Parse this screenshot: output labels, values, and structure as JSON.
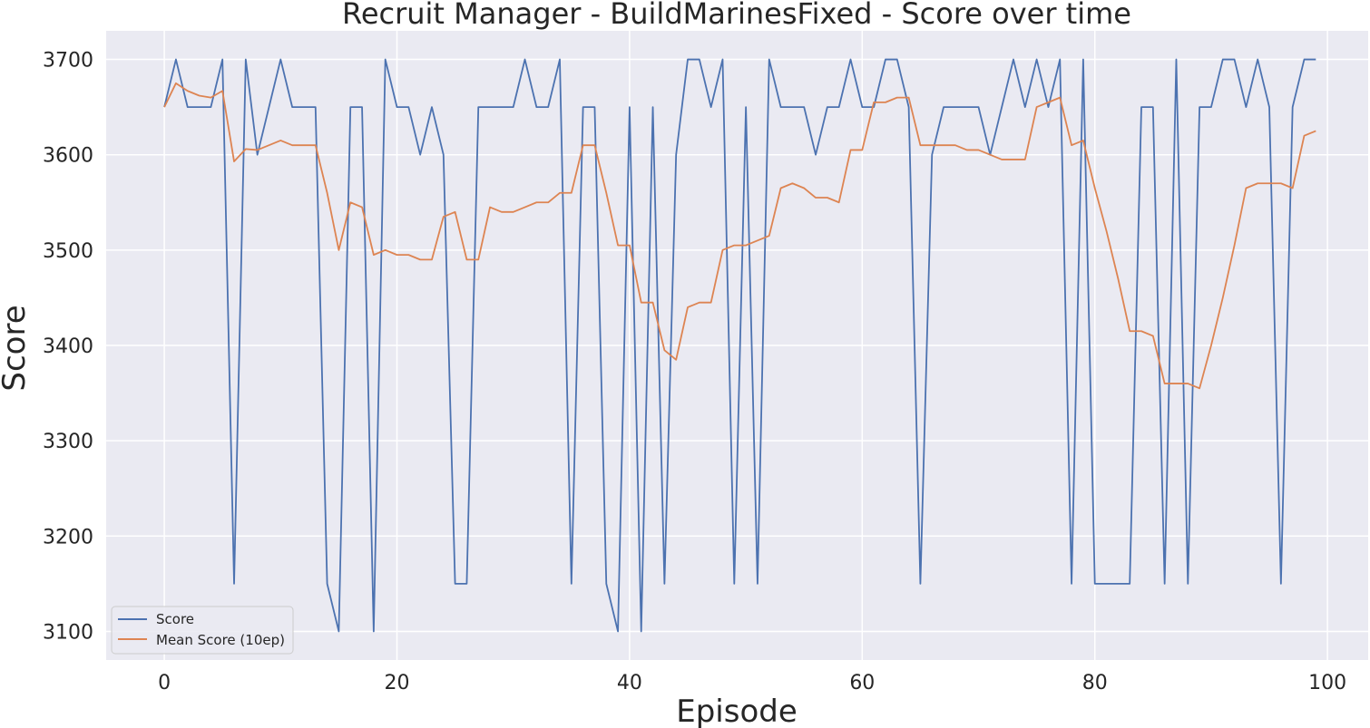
{
  "chart_data": {
    "type": "line",
    "title": "Recruit Manager - BuildMarinesFixed - Score over time",
    "xlabel": "Episode",
    "ylabel": "Score",
    "xlim": [
      -5,
      103.5
    ],
    "ylim": [
      3070,
      3730
    ],
    "xticks": [
      0,
      20,
      40,
      60,
      80,
      100
    ],
    "yticks": [
      3100,
      3200,
      3300,
      3400,
      3500,
      3600,
      3700
    ],
    "grid": true,
    "legend_position": "lower-left",
    "x": [
      0,
      1,
      2,
      3,
      4,
      5,
      6,
      7,
      8,
      9,
      10,
      11,
      12,
      13,
      14,
      15,
      16,
      17,
      18,
      19,
      20,
      21,
      22,
      23,
      24,
      25,
      26,
      27,
      28,
      29,
      30,
      31,
      32,
      33,
      34,
      35,
      36,
      37,
      38,
      39,
      40,
      41,
      42,
      43,
      44,
      45,
      46,
      47,
      48,
      49,
      50,
      51,
      52,
      53,
      54,
      55,
      56,
      57,
      58,
      59,
      60,
      61,
      62,
      63,
      64,
      65,
      66,
      67,
      68,
      69,
      70,
      71,
      72,
      73,
      74,
      75,
      76,
      77,
      78,
      79,
      80,
      81,
      82,
      83,
      84,
      85,
      86,
      87,
      88,
      89,
      90,
      91,
      92,
      93,
      94,
      95,
      96,
      97,
      98,
      99
    ],
    "series": [
      {
        "name": "Score",
        "color": "#4c72b0",
        "values": [
          3650,
          3700,
          3650,
          3650,
          3650,
          3700,
          3150,
          3700,
          3600,
          3650,
          3700,
          3650,
          3650,
          3650,
          3150,
          3100,
          3650,
          3650,
          3100,
          3700,
          3650,
          3650,
          3600,
          3650,
          3600,
          3150,
          3150,
          3650,
          3650,
          3650,
          3650,
          3700,
          3650,
          3650,
          3700,
          3150,
          3650,
          3650,
          3150,
          3100,
          3650,
          3100,
          3650,
          3150,
          3600,
          3700,
          3700,
          3650,
          3700,
          3150,
          3650,
          3150,
          3700,
          3650,
          3650,
          3650,
          3600,
          3650,
          3650,
          3700,
          3650,
          3650,
          3700,
          3700,
          3650,
          3150,
          3600,
          3650,
          3650,
          3650,
          3650,
          3600,
          3650,
          3700,
          3650,
          3700,
          3650,
          3700,
          3150,
          3700,
          3150,
          3150,
          3150,
          3150,
          3650,
          3650,
          3150,
          3700,
          3150,
          3650,
          3650,
          3700,
          3700,
          3650,
          3700,
          3650,
          3150,
          3650,
          3700,
          3700
        ]
      },
      {
        "name": "Mean Score (10ep)",
        "color": "#dd8452",
        "values": [
          3650,
          3675,
          3667,
          3662,
          3660,
          3667,
          3593,
          3606,
          3605,
          3610,
          3615,
          3610,
          3610,
          3610,
          3560,
          3500,
          3550,
          3545,
          3495,
          3500,
          3495,
          3495,
          3490,
          3490,
          3535,
          3540,
          3490,
          3490,
          3545,
          3540,
          3540,
          3545,
          3550,
          3550,
          3560,
          3560,
          3610,
          3610,
          3560,
          3505,
          3505,
          3445,
          3445,
          3395,
          3385,
          3440,
          3445,
          3445,
          3500,
          3505,
          3505,
          3510,
          3515,
          3565,
          3570,
          3565,
          3555,
          3555,
          3550,
          3605,
          3605,
          3655,
          3655,
          3660,
          3660,
          3610,
          3610,
          3610,
          3610,
          3605,
          3605,
          3600,
          3595,
          3595,
          3595,
          3650,
          3655,
          3660,
          3610,
          3615,
          3565,
          3520,
          3470,
          3415,
          3415,
          3410,
          3360,
          3360,
          3360,
          3355,
          3400,
          3450,
          3505,
          3565,
          3570,
          3570,
          3570,
          3565,
          3620,
          3625
        ]
      }
    ]
  }
}
